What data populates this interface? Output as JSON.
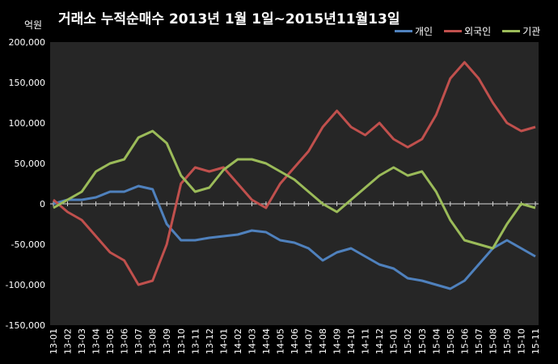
{
  "chart_data": {
    "type": "line",
    "title": "거래소 누적순매수 2013년 1월 1일~2015년11월13일",
    "ylabel": "억원",
    "ylim": [
      -150000,
      200000
    ],
    "yticks": [
      "200,000",
      "150,000",
      "100,000",
      "50,000",
      "0",
      "-50,000",
      "-100,000",
      "-150,000"
    ],
    "yticks_values": [
      200000,
      150000,
      100000,
      50000,
      0,
      -50000,
      -100000,
      -150000
    ],
    "categories": [
      "13-01",
      "13-02",
      "13-03",
      "13-04",
      "13-05",
      "13-06",
      "13-07",
      "13-08",
      "13-09",
      "13-10",
      "13-11",
      "13-12",
      "14-01",
      "14-02",
      "14-03",
      "14-04",
      "14-05",
      "14-06",
      "14-07",
      "14-08",
      "14-09",
      "14-10",
      "14-11",
      "14-12",
      "15-01",
      "15-02",
      "15-03",
      "15-04",
      "15-05",
      "15-06",
      "15-07",
      "15-08",
      "15-09",
      "15-10",
      "15-11"
    ],
    "grid": false,
    "legend_position": "top-right",
    "series": [
      {
        "name": "개인",
        "color": "#4f81bd",
        "values": [
          0,
          5000,
          5000,
          8000,
          15000,
          15000,
          22000,
          18000,
          -25000,
          -45000,
          -45000,
          -42000,
          -40000,
          -38000,
          -33000,
          -35000,
          -45000,
          -48000,
          -55000,
          -70000,
          -60000,
          -55000,
          -65000,
          -75000,
          -80000,
          -92000,
          -95000,
          -100000,
          -105000,
          -95000,
          -75000,
          -55000,
          -45000,
          -55000,
          -65000
        ]
      },
      {
        "name": "외국인",
        "color": "#c0504d",
        "values": [
          5000,
          -10000,
          -20000,
          -40000,
          -60000,
          -70000,
          -100000,
          -95000,
          -50000,
          25000,
          45000,
          40000,
          45000,
          25000,
          5000,
          -5000,
          25000,
          45000,
          65000,
          95000,
          115000,
          95000,
          85000,
          100000,
          80000,
          70000,
          80000,
          110000,
          155000,
          175000,
          155000,
          125000,
          100000,
          90000,
          95000
        ]
      },
      {
        "name": "기관",
        "color": "#9bbb59",
        "values": [
          -5000,
          5000,
          15000,
          40000,
          50000,
          55000,
          82000,
          90000,
          75000,
          35000,
          15000,
          20000,
          42000,
          55000,
          55000,
          50000,
          40000,
          30000,
          15000,
          0,
          -10000,
          5000,
          20000,
          35000,
          45000,
          35000,
          40000,
          15000,
          -20000,
          -45000,
          -50000,
          -55000,
          -25000,
          0,
          -5000
        ]
      }
    ]
  }
}
